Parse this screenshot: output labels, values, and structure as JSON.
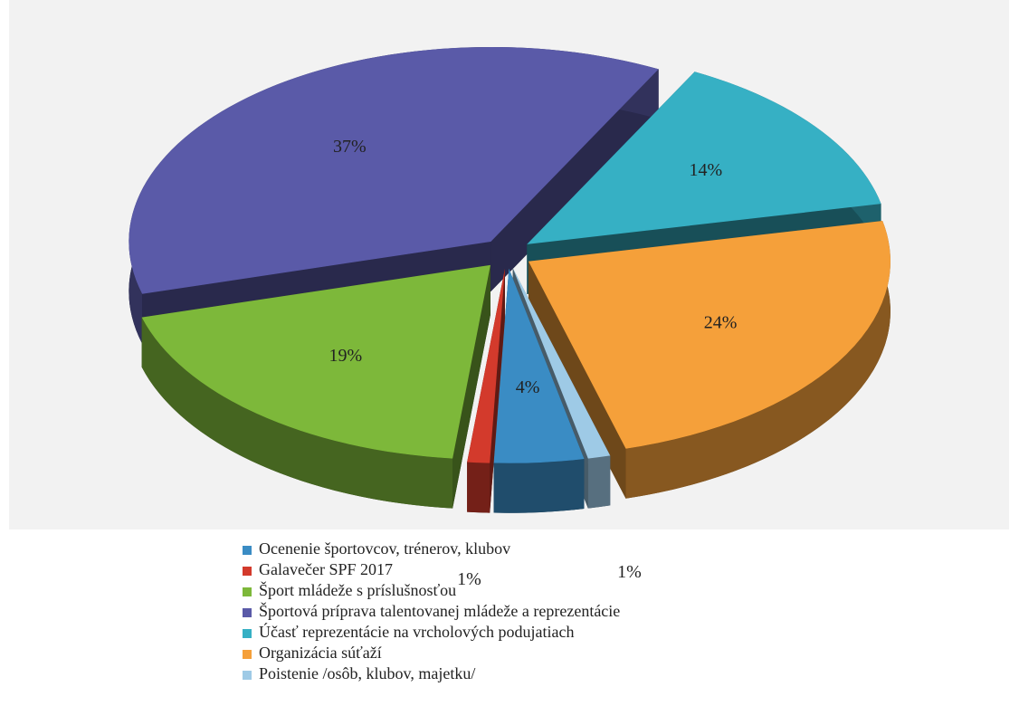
{
  "chart_data": {
    "type": "pie",
    "categories": [
      "Ocenenie športovcov, trénerov, klubov",
      "Galavečer SPF 2017",
      "Šport mládeže s príslušnosťou",
      "Športová príprava talentovanej mládeže a reprezentácie",
      "Účasť reprezentácie na vrcholových podujatiach",
      "Organizácia súťaží",
      "Poistenie /osôb, klubov, majetku/"
    ],
    "values": [
      4,
      1,
      19,
      37,
      14,
      24,
      1
    ],
    "value_labels": [
      "4%",
      "1%",
      "19%",
      "37%",
      "14%",
      "24%",
      "1%"
    ],
    "colors": [
      "#3a8cc4",
      "#d33a2c",
      "#7db83a",
      "#5a5aa8",
      "#36b0c4",
      "#f5a03a",
      "#9ecae6"
    ],
    "legend": "bottom"
  }
}
